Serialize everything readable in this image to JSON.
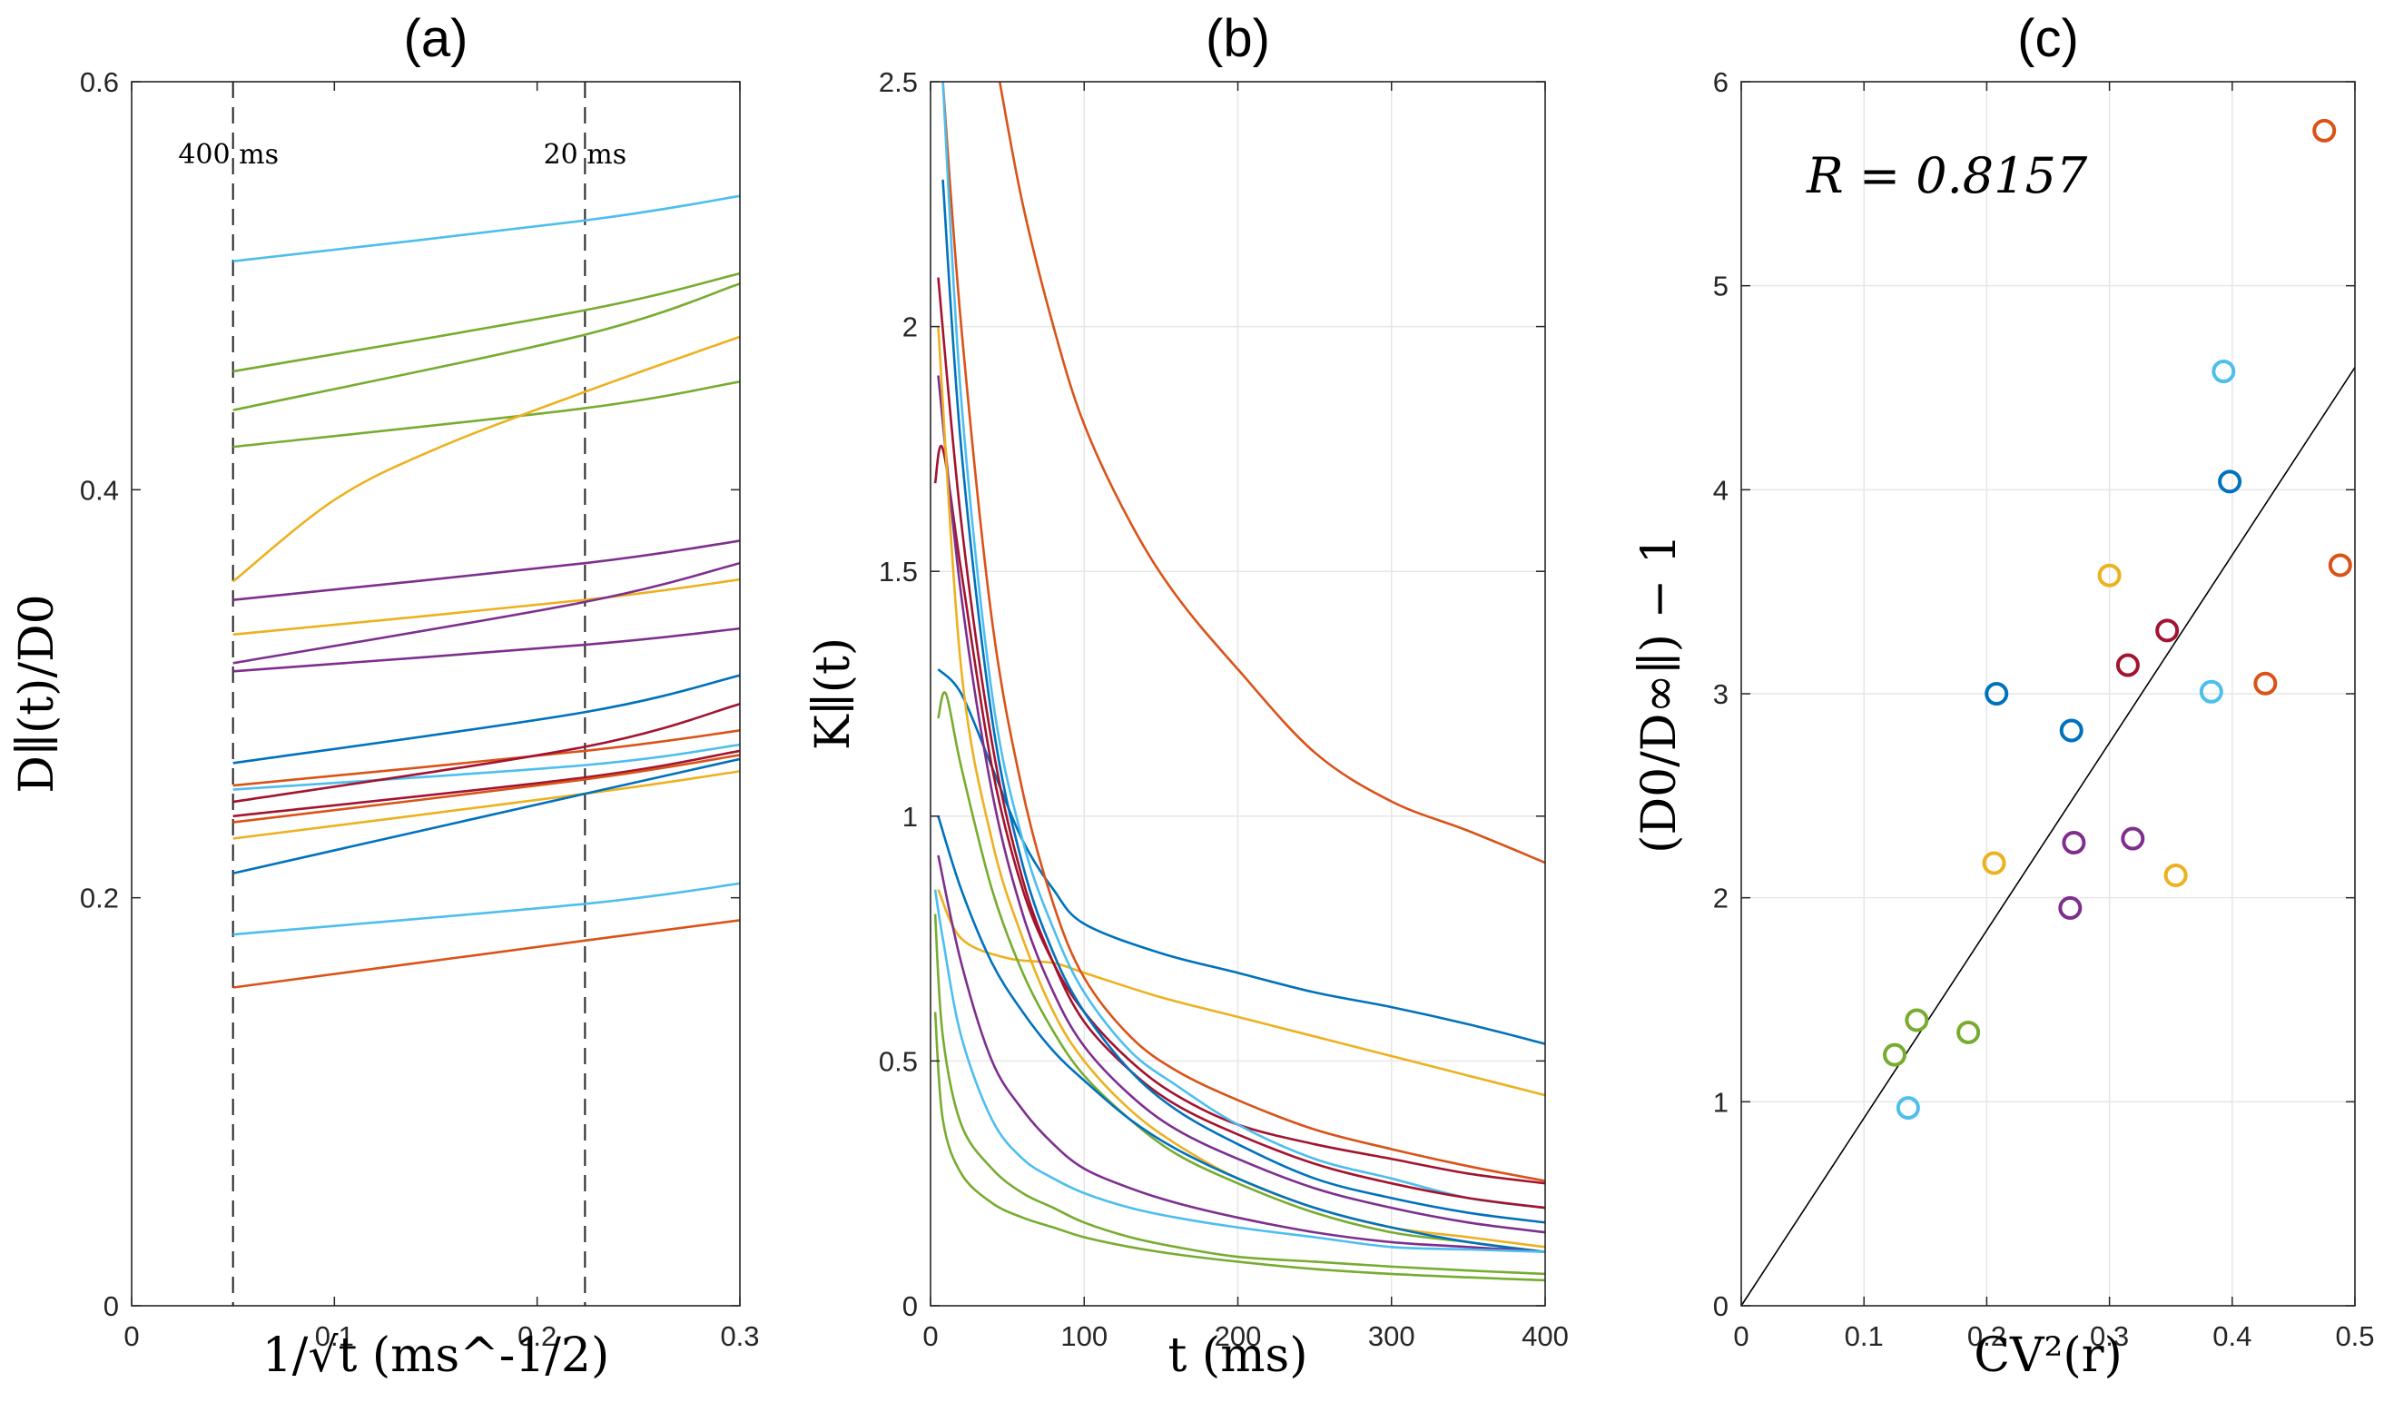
{
  "colors": {
    "blue": "#0072BD",
    "orange": "#D95319",
    "yellow": "#EDB120",
    "purple": "#7E2F8E",
    "green": "#77AC30",
    "lightblue": "#4DBEEE",
    "maroon": "#A2142F",
    "grid": "#e6e6e6",
    "axis": "#262626"
  },
  "chart_data": [
    {
      "panel": "(a)",
      "type": "line",
      "title": "(a)",
      "xlabel": "1/√t (ms^-1/2)",
      "ylabel": "D∥(t)/D0",
      "xlim": [
        0,
        0.3
      ],
      "ylim": [
        0,
        0.6
      ],
      "xticks": [
        0,
        0.1,
        0.2,
        0.3
      ],
      "xticklabels": [
        "0",
        "0.1",
        "0.2",
        "0.3"
      ],
      "yticks": [
        0,
        0.2,
        0.4,
        0.6
      ],
      "yticklabels": [
        "0",
        "0.2",
        "0.4",
        "0.6"
      ],
      "grid": false,
      "vlines": [
        {
          "x": 0.05,
          "label": "400 ms"
        },
        {
          "x": 0.2236,
          "label": "20 ms"
        }
      ],
      "series": [
        {
          "color": "lightblue",
          "x": [
            0.05,
            0.2236,
            0.3
          ],
          "y": [
            0.512,
            0.532,
            0.544
          ]
        },
        {
          "color": "green",
          "x": [
            0.05,
            0.2236,
            0.3
          ],
          "y": [
            0.458,
            0.488,
            0.506
          ]
        },
        {
          "color": "green",
          "x": [
            0.05,
            0.2236,
            0.3
          ],
          "y": [
            0.439,
            0.476,
            0.501
          ]
        },
        {
          "color": "green",
          "x": [
            0.05,
            0.2236,
            0.3
          ],
          "y": [
            0.421,
            0.44,
            0.453
          ]
        },
        {
          "color": "yellow",
          "x": [
            0.05,
            0.1,
            0.15,
            0.2236,
            0.3
          ],
          "y": [
            0.355,
            0.395,
            0.42,
            0.448,
            0.475
          ]
        },
        {
          "color": "purple",
          "x": [
            0.05,
            0.2236,
            0.3
          ],
          "y": [
            0.346,
            0.364,
            0.375
          ]
        },
        {
          "color": "yellow",
          "x": [
            0.05,
            0.2236,
            0.3
          ],
          "y": [
            0.329,
            0.346,
            0.356
          ]
        },
        {
          "color": "purple",
          "x": [
            0.05,
            0.2236,
            0.3
          ],
          "y": [
            0.315,
            0.345,
            0.364
          ]
        },
        {
          "color": "purple",
          "x": [
            0.05,
            0.2236,
            0.3
          ],
          "y": [
            0.311,
            0.324,
            0.332
          ]
        },
        {
          "color": "blue",
          "x": [
            0.05,
            0.2236,
            0.3
          ],
          "y": [
            0.266,
            0.291,
            0.309
          ]
        },
        {
          "color": "orange",
          "x": [
            0.05,
            0.2236,
            0.3
          ],
          "y": [
            0.255,
            0.272,
            0.282
          ]
        },
        {
          "color": "lightblue",
          "x": [
            0.05,
            0.2236,
            0.3
          ],
          "y": [
            0.253,
            0.265,
            0.275
          ]
        },
        {
          "color": "maroon",
          "x": [
            0.05,
            0.2236,
            0.3
          ],
          "y": [
            0.247,
            0.274,
            0.295
          ]
        },
        {
          "color": "maroon",
          "x": [
            0.05,
            0.2236,
            0.3
          ],
          "y": [
            0.24,
            0.259,
            0.272
          ]
        },
        {
          "color": "orange",
          "x": [
            0.05,
            0.2236,
            0.3
          ],
          "y": [
            0.237,
            0.258,
            0.27
          ]
        },
        {
          "color": "yellow",
          "x": [
            0.05,
            0.2236,
            0.3
          ],
          "y": [
            0.229,
            0.251,
            0.262
          ]
        },
        {
          "color": "blue",
          "x": [
            0.05,
            0.2236,
            0.3
          ],
          "y": [
            0.212,
            0.251,
            0.268
          ]
        },
        {
          "color": "lightblue",
          "x": [
            0.05,
            0.2236,
            0.3
          ],
          "y": [
            0.182,
            0.197,
            0.207
          ]
        },
        {
          "color": "orange",
          "x": [
            0.05,
            0.2236,
            0.3
          ],
          "y": [
            0.156,
            0.179,
            0.189
          ]
        }
      ]
    },
    {
      "panel": "(b)",
      "type": "line",
      "title": "(b)",
      "xlabel": "t (ms)",
      "ylabel": "K∥(t)",
      "xlim": [
        0,
        400
      ],
      "ylim": [
        0,
        2.5
      ],
      "xticks": [
        0,
        100,
        200,
        300,
        400
      ],
      "xticklabels": [
        "0",
        "100",
        "200",
        "300",
        "400"
      ],
      "yticks": [
        0,
        0.5,
        1,
        1.5,
        2,
        2.5
      ],
      "yticklabels": [
        "0",
        "0.5",
        "1",
        "1.5",
        "2",
        "2.5"
      ],
      "grid": true,
      "series": [
        {
          "color": "orange",
          "x": [
            45,
            60,
            80,
            100,
            130,
            160,
            200,
            250,
            300,
            350,
            400
          ],
          "y": [
            2.5,
            2.25,
            2.0,
            1.8,
            1.6,
            1.45,
            1.3,
            1.13,
            1.03,
            0.97,
            0.905
          ]
        },
        {
          "color": "blue",
          "x": [
            5,
            20,
            40,
            60,
            80,
            100,
            150,
            200,
            250,
            300,
            350,
            400
          ],
          "y": [
            1.3,
            1.25,
            1.1,
            0.95,
            0.85,
            0.78,
            0.72,
            0.68,
            0.64,
            0.61,
            0.575,
            0.535
          ]
        },
        {
          "color": "yellow",
          "x": [
            5,
            20,
            50,
            80,
            100,
            150,
            200,
            250,
            300,
            350,
            400
          ],
          "y": [
            0.85,
            0.75,
            0.71,
            0.7,
            0.68,
            0.63,
            0.59,
            0.55,
            0.51,
            0.47,
            0.43
          ]
        },
        {
          "color": "orange",
          "x": [
            8,
            20,
            40,
            60,
            80,
            100,
            130,
            160,
            200,
            250,
            300,
            350,
            400
          ],
          "y": [
            2.5,
            2.0,
            1.4,
            1.05,
            0.82,
            0.67,
            0.55,
            0.48,
            0.42,
            0.36,
            0.32,
            0.285,
            0.255
          ]
        },
        {
          "color": "maroon",
          "x": [
            3,
            8,
            20,
            40,
            60,
            80,
            100,
            130,
            160,
            200,
            250,
            300,
            350,
            400
          ],
          "y": [
            1.68,
            1.75,
            1.5,
            1.1,
            0.85,
            0.7,
            0.6,
            0.5,
            0.43,
            0.37,
            0.33,
            0.3,
            0.27,
            0.25
          ]
        },
        {
          "color": "lightblue",
          "x": [
            8,
            20,
            40,
            60,
            80,
            100,
            130,
            160,
            200,
            250,
            300,
            350,
            400
          ],
          "y": [
            2.5,
            1.85,
            1.25,
            0.95,
            0.77,
            0.64,
            0.52,
            0.45,
            0.37,
            0.3,
            0.26,
            0.22,
            0.2
          ]
        },
        {
          "color": "maroon",
          "x": [
            5,
            20,
            40,
            60,
            80,
            100,
            130,
            160,
            200,
            250,
            300,
            350,
            400
          ],
          "y": [
            2.1,
            1.6,
            1.15,
            0.87,
            0.7,
            0.58,
            0.48,
            0.41,
            0.35,
            0.29,
            0.25,
            0.22,
            0.2
          ]
        },
        {
          "color": "blue",
          "x": [
            8,
            20,
            40,
            60,
            80,
            100,
            130,
            160,
            200,
            250,
            300,
            350,
            400
          ],
          "y": [
            2.3,
            1.75,
            1.2,
            0.9,
            0.72,
            0.6,
            0.48,
            0.4,
            0.33,
            0.26,
            0.22,
            0.19,
            0.17
          ]
        },
        {
          "color": "purple",
          "x": [
            5,
            20,
            40,
            60,
            80,
            100,
            130,
            160,
            200,
            250,
            300,
            350,
            400
          ],
          "y": [
            1.9,
            1.45,
            1.05,
            0.8,
            0.64,
            0.53,
            0.43,
            0.36,
            0.3,
            0.24,
            0.2,
            0.17,
            0.15
          ]
        },
        {
          "color": "yellow",
          "x": [
            5,
            20,
            40,
            60,
            80,
            100,
            130,
            160,
            200,
            250,
            300,
            350,
            400
          ],
          "y": [
            2.0,
            1.3,
            0.95,
            0.75,
            0.6,
            0.5,
            0.4,
            0.33,
            0.26,
            0.2,
            0.16,
            0.14,
            0.12
          ]
        },
        {
          "color": "green",
          "x": [
            5,
            10,
            20,
            40,
            60,
            80,
            100,
            130,
            160,
            200,
            250,
            300,
            350,
            400
          ],
          "y": [
            1.2,
            1.25,
            1.1,
            0.85,
            0.68,
            0.56,
            0.47,
            0.38,
            0.31,
            0.25,
            0.19,
            0.15,
            0.13,
            0.11
          ]
        },
        {
          "color": "blue",
          "x": [
            5,
            20,
            40,
            60,
            80,
            100,
            130,
            160,
            200,
            250,
            300,
            350,
            400
          ],
          "y": [
            1.0,
            0.85,
            0.7,
            0.6,
            0.52,
            0.46,
            0.38,
            0.32,
            0.26,
            0.2,
            0.16,
            0.13,
            0.11
          ]
        },
        {
          "color": "purple",
          "x": [
            5,
            20,
            40,
            60,
            80,
            100,
            130,
            160,
            200,
            250,
            300,
            350,
            400
          ],
          "y": [
            0.92,
            0.7,
            0.5,
            0.4,
            0.33,
            0.28,
            0.24,
            0.21,
            0.18,
            0.15,
            0.13,
            0.12,
            0.11
          ]
        },
        {
          "color": "lightblue",
          "x": [
            3,
            8,
            20,
            40,
            60,
            80,
            100,
            130,
            160,
            200,
            250,
            300,
            350,
            400
          ],
          "y": [
            0.85,
            0.75,
            0.55,
            0.38,
            0.3,
            0.26,
            0.23,
            0.2,
            0.18,
            0.16,
            0.14,
            0.12,
            0.115,
            0.11
          ]
        },
        {
          "color": "green",
          "x": [
            3,
            8,
            20,
            40,
            60,
            80,
            100,
            130,
            160,
            200,
            250,
            300,
            350,
            400
          ],
          "y": [
            0.8,
            0.55,
            0.37,
            0.28,
            0.23,
            0.2,
            0.17,
            0.14,
            0.12,
            0.1,
            0.09,
            0.08,
            0.072,
            0.065
          ]
        },
        {
          "color": "green",
          "x": [
            3,
            8,
            20,
            40,
            60,
            80,
            100,
            130,
            160,
            200,
            250,
            300,
            350,
            400
          ],
          "y": [
            0.6,
            0.38,
            0.27,
            0.21,
            0.18,
            0.16,
            0.14,
            0.12,
            0.105,
            0.09,
            0.075,
            0.065,
            0.058,
            0.052
          ]
        }
      ]
    },
    {
      "panel": "(c)",
      "type": "scatter",
      "title": "(c)",
      "xlabel": "CV²(r)",
      "ylabel": "(D0/D∞∥) − 1",
      "xlim": [
        0,
        0.5
      ],
      "ylim": [
        0,
        6
      ],
      "xticks": [
        0,
        0.1,
        0.2,
        0.3,
        0.4,
        0.5
      ],
      "xticklabels": [
        "0",
        "0.1",
        "0.2",
        "0.3",
        "0.4",
        "0.5"
      ],
      "yticks": [
        0,
        1,
        2,
        3,
        4,
        5,
        6
      ],
      "yticklabels": [
        "0",
        "1",
        "2",
        "3",
        "4",
        "5",
        "6"
      ],
      "grid": true,
      "annotation": "R = 0.8157",
      "fit_line": {
        "x": [
          0,
          0.5
        ],
        "y": [
          0,
          4.6
        ]
      },
      "points": [
        {
          "x": 0.475,
          "y": 5.76,
          "color": "orange"
        },
        {
          "x": 0.393,
          "y": 4.58,
          "color": "lightblue"
        },
        {
          "x": 0.398,
          "y": 4.04,
          "color": "blue"
        },
        {
          "x": 0.488,
          "y": 3.63,
          "color": "orange"
        },
        {
          "x": 0.3,
          "y": 3.58,
          "color": "yellow"
        },
        {
          "x": 0.347,
          "y": 3.31,
          "color": "maroon"
        },
        {
          "x": 0.315,
          "y": 3.14,
          "color": "maroon"
        },
        {
          "x": 0.427,
          "y": 3.05,
          "color": "orange"
        },
        {
          "x": 0.383,
          "y": 3.01,
          "color": "lightblue"
        },
        {
          "x": 0.208,
          "y": 3.0,
          "color": "blue"
        },
        {
          "x": 0.269,
          "y": 2.82,
          "color": "blue"
        },
        {
          "x": 0.319,
          "y": 2.29,
          "color": "purple"
        },
        {
          "x": 0.271,
          "y": 2.27,
          "color": "purple"
        },
        {
          "x": 0.206,
          "y": 2.17,
          "color": "yellow"
        },
        {
          "x": 0.354,
          "y": 2.11,
          "color": "yellow"
        },
        {
          "x": 0.268,
          "y": 1.95,
          "color": "purple"
        },
        {
          "x": 0.143,
          "y": 1.4,
          "color": "green"
        },
        {
          "x": 0.185,
          "y": 1.34,
          "color": "green"
        },
        {
          "x": 0.125,
          "y": 1.23,
          "color": "green"
        },
        {
          "x": 0.136,
          "y": 0.97,
          "color": "lightblue"
        }
      ]
    }
  ]
}
